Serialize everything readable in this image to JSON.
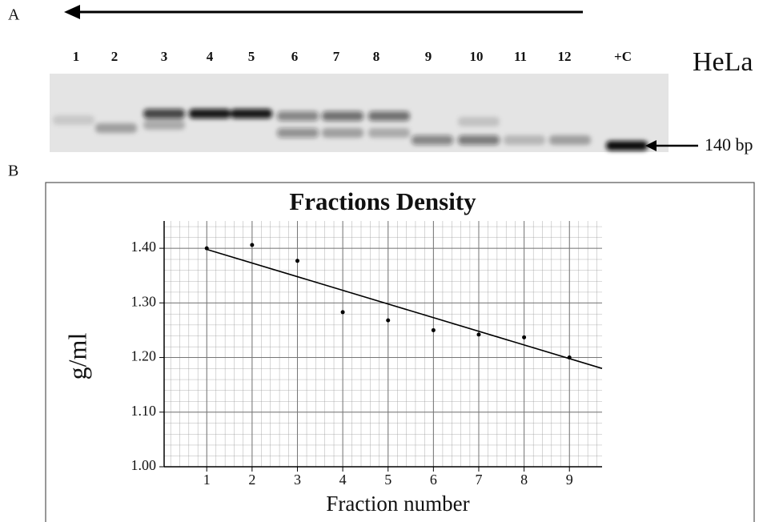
{
  "panel_a": {
    "label": "A",
    "lanes": [
      "1",
      "2",
      "3",
      "4",
      "5",
      "6",
      "7",
      "8",
      "9",
      "10",
      "11",
      "12",
      "+C"
    ],
    "cell_line": "HeLa",
    "marker": "140 bp"
  },
  "panel_b": {
    "label": "B"
  },
  "chart_data": {
    "type": "scatter",
    "title": "Fractions Density",
    "x_label": "Fraction number",
    "y_label": "g/ml",
    "x": [
      1,
      2,
      3,
      4,
      5,
      6,
      7,
      8,
      9
    ],
    "values": [
      1.4,
      1.406,
      1.377,
      1.283,
      1.268,
      1.25,
      1.242,
      1.237,
      1.2
    ],
    "color": "#000000",
    "trendline": {
      "slope": -0.025,
      "intercept": 1.423
    },
    "xlim": [
      0.06,
      9.72
    ],
    "ylim": [
      1.0,
      1.45
    ],
    "xticks": [
      1,
      2,
      3,
      4,
      5,
      6,
      7,
      8,
      9
    ],
    "yticks": [
      {
        "value": 1.0,
        "label": "1.00"
      },
      {
        "value": 1.1,
        "label": "1.10"
      },
      {
        "value": 1.2,
        "label": "1.20"
      },
      {
        "value": 1.3,
        "label": "1.30"
      },
      {
        "value": 1.4,
        "label": "1.40"
      }
    ],
    "grid": true
  }
}
